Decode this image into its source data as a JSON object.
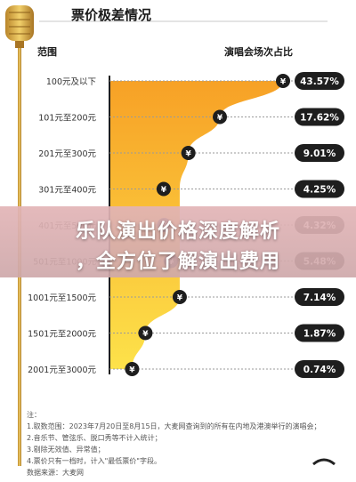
{
  "title": "票价极差情况",
  "headers": {
    "left": "范围",
    "right": "演唱会场次占比"
  },
  "chart_data": {
    "type": "bar",
    "categories": [
      "100元及以下",
      "101元至200元",
      "201元至300元",
      "301元至400元",
      "401元至500元",
      "501元至1000元",
      "1001元至1500元",
      "1501元至2000元",
      "2001元至3000元"
    ],
    "values": [
      43.57,
      17.62,
      9.01,
      4.25,
      4.32,
      5.48,
      7.14,
      1.87,
      0.74
    ],
    "value_labels": [
      "43.57%",
      "17.62%",
      "9.01%",
      "4.25%",
      "4.32%",
      "5.48%",
      "7.14%",
      "1.87%",
      "0.74%"
    ],
    "unit": "%",
    "xlim": [
      0,
      43.57
    ],
    "colors": {
      "fill_top": "#f6a623",
      "fill_bottom": "#fde14b",
      "badge": "#1e1e1e",
      "pill": "#1e1e1e"
    }
  },
  "banner": {
    "line1": "乐队演出价格深度解析",
    "line2": "，全方位了解演出费用"
  },
  "notes": [
    "注：",
    "1.取数范围：2023年7月20日至8月15日，大麦网查询到的所有在内地及港澳举行的演唱会；",
    "2.音乐节、管弦乐、脱口秀等不计入统计；",
    "3.剔除无效值、异常值；",
    "4.票价只有一档时，计入\"最低票价\"字段。",
    "数据来源：大麦网"
  ],
  "icons": {
    "mic": "microphone-icon",
    "badge": "yuan-coin-icon"
  }
}
